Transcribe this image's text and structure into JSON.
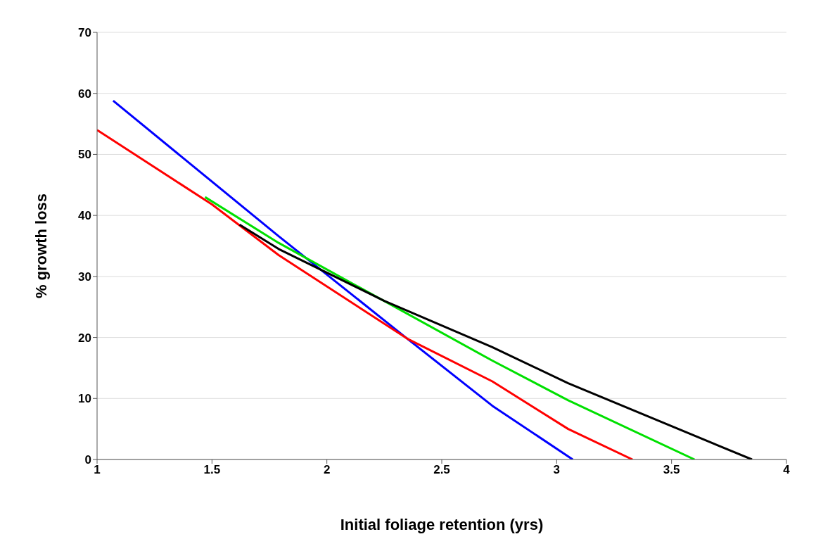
{
  "chart_data": {
    "type": "line",
    "xlabel": "Initial foliage retention (yrs)",
    "ylabel": "% growth loss",
    "xlim": [
      1,
      4
    ],
    "xticks": [
      1,
      1.5,
      2,
      2.5,
      3,
      3.5,
      4
    ],
    "ylim": [
      0,
      70
    ],
    "yticks": [
      0,
      10,
      20,
      30,
      40,
      50,
      60,
      70
    ],
    "grid": "y",
    "marker": "none",
    "line_style": "solid",
    "series": [
      {
        "color": "#0000ff",
        "x": [
          1.07,
          1.79,
          2.35,
          2.72,
          3.07
        ],
        "values": [
          58.8,
          36.6,
          19.8,
          8.8,
          0
        ]
      },
      {
        "color": "#ff0000",
        "x": [
          1,
          1.5,
          1.79,
          2.35,
          2.72,
          3.05,
          3.33
        ],
        "values": [
          54,
          41.8,
          33.5,
          19.8,
          12.8,
          5,
          0
        ]
      },
      {
        "color": "#00e000",
        "x": [
          1.47,
          1.79,
          2.72,
          3.05,
          3.6
        ],
        "values": [
          43,
          35.5,
          16.2,
          9.7,
          0
        ]
      },
      {
        "color": "#000000",
        "x": [
          1.62,
          1.79,
          2.25,
          2.72,
          3.05,
          3.85
        ],
        "values": [
          38.5,
          34.5,
          26,
          18.4,
          12.5,
          0
        ]
      }
    ]
  }
}
